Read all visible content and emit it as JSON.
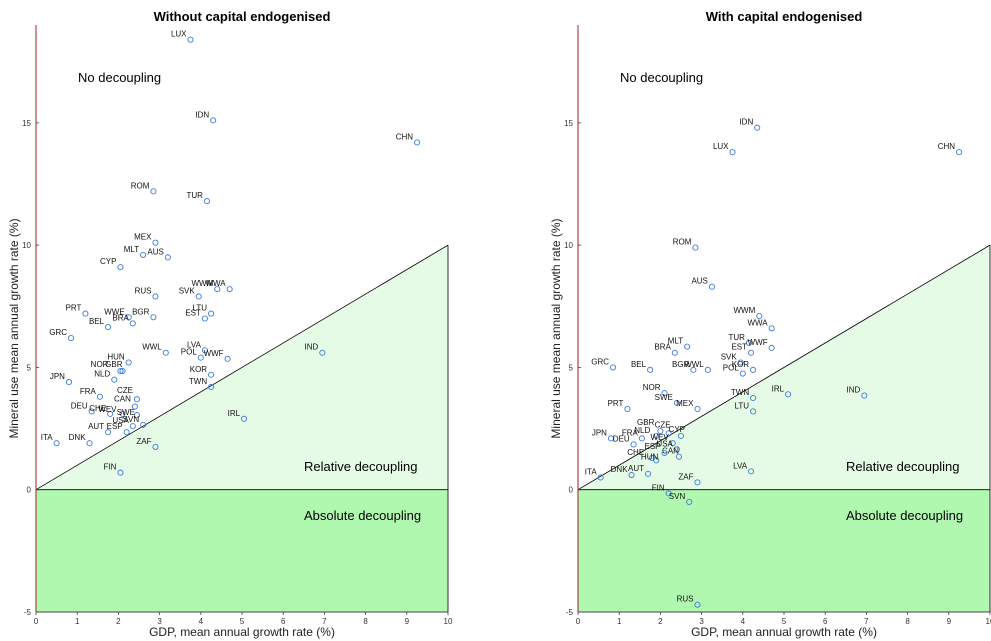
{
  "chart_data": [
    {
      "type": "scatter",
      "title": "Without capital endogenised",
      "xlabel": "GDP, mean annual growth rate (%)",
      "ylabel": "Mineral use mean annual growth rate (%)",
      "xlim": [
        0,
        10
      ],
      "ylim": [
        -5,
        19
      ],
      "xticks": [
        0,
        1,
        2,
        3,
        4,
        5,
        6,
        7,
        8,
        9,
        10
      ],
      "yticks": [
        -5,
        0,
        5,
        10,
        15
      ],
      "regions": {
        "no_decoupling": "No decoupling",
        "relative_decoupling": "Relative decoupling",
        "absolute_decoupling": "Absolute decoupling"
      },
      "colors": {
        "marker": "#3c7ddb",
        "relative_fill": "#e5fbe5",
        "absolute_fill": "#b0f7b0",
        "left_axis": "#a02020"
      },
      "points": [
        {
          "label": "LUX",
          "x": 3.75,
          "y": 18.4
        },
        {
          "label": "IDN",
          "x": 4.3,
          "y": 15.1
        },
        {
          "label": "CHN",
          "x": 9.25,
          "y": 14.2
        },
        {
          "label": "ROM",
          "x": 2.85,
          "y": 12.2
        },
        {
          "label": "TUR",
          "x": 4.15,
          "y": 11.8
        },
        {
          "label": "MEX",
          "x": 2.9,
          "y": 10.1
        },
        {
          "label": "MLT",
          "x": 2.6,
          "y": 9.6
        },
        {
          "label": "AUS",
          "x": 3.2,
          "y": 9.5
        },
        {
          "label": "CYP",
          "x": 2.05,
          "y": 9.1
        },
        {
          "label": "RUS",
          "x": 2.9,
          "y": 7.9
        },
        {
          "label": "SVK",
          "x": 3.95,
          "y": 7.9
        },
        {
          "label": "WWM",
          "x": 4.4,
          "y": 8.2
        },
        {
          "label": "WWA",
          "x": 4.7,
          "y": 8.2
        },
        {
          "label": "PRT",
          "x": 1.2,
          "y": 7.2
        },
        {
          "label": "WWE",
          "x": 2.25,
          "y": 7.05
        },
        {
          "label": "BGR",
          "x": 2.85,
          "y": 7.05
        },
        {
          "label": "BRA",
          "x": 2.35,
          "y": 6.8
        },
        {
          "label": "BEL",
          "x": 1.75,
          "y": 6.65
        },
        {
          "label": "LTU",
          "x": 4.25,
          "y": 7.2
        },
        {
          "label": "EST",
          "x": 4.1,
          "y": 7.0
        },
        {
          "label": "GRC",
          "x": 0.85,
          "y": 6.2
        },
        {
          "label": "WWL",
          "x": 3.15,
          "y": 5.6
        },
        {
          "label": "LVA",
          "x": 4.1,
          "y": 5.7
        },
        {
          "label": "POL",
          "x": 4.0,
          "y": 5.4
        },
        {
          "label": "WWF",
          "x": 4.65,
          "y": 5.35
        },
        {
          "label": "IND",
          "x": 6.95,
          "y": 5.6
        },
        {
          "label": "HUN",
          "x": 2.25,
          "y": 5.2
        },
        {
          "label": "NOR",
          "x": 2.05,
          "y": 4.85
        },
        {
          "label": "GBR",
          "x": 2.1,
          "y": 4.85
        },
        {
          "label": "NLD",
          "x": 1.9,
          "y": 4.5
        },
        {
          "label": "KOR",
          "x": 4.25,
          "y": 4.7
        },
        {
          "label": "TWN",
          "x": 4.25,
          "y": 4.2
        },
        {
          "label": "JPN",
          "x": 0.8,
          "y": 4.4
        },
        {
          "label": "FRA",
          "x": 1.55,
          "y": 3.8
        },
        {
          "label": "CZE",
          "x": 2.45,
          "y": 3.7
        },
        {
          "label": "CAN",
          "x": 2.4,
          "y": 3.4
        },
        {
          "label": "DEU",
          "x": 1.35,
          "y": 3.2
        },
        {
          "label": "CHE",
          "x": 1.8,
          "y": 3.1
        },
        {
          "label": "WEV",
          "x": 2.1,
          "y": 3.1
        },
        {
          "label": "SWE",
          "x": 2.45,
          "y": 3.05
        },
        {
          "label": "USA",
          "x": 2.35,
          "y": 2.6
        },
        {
          "label": "SVN",
          "x": 2.6,
          "y": 2.65
        },
        {
          "label": "AUT",
          "x": 1.75,
          "y": 2.35
        },
        {
          "label": "ESP",
          "x": 2.2,
          "y": 2.35
        },
        {
          "label": "IRL",
          "x": 5.05,
          "y": 2.9
        },
        {
          "label": "ITA",
          "x": 0.5,
          "y": 1.9
        },
        {
          "label": "DNK",
          "x": 1.3,
          "y": 1.9
        },
        {
          "label": "ZAF",
          "x": 2.9,
          "y": 1.75
        },
        {
          "label": "FIN",
          "x": 2.05,
          "y": 0.7
        }
      ]
    },
    {
      "type": "scatter",
      "title": "With capital endogenised",
      "xlabel": "GDP, mean annual growth rate (%)",
      "ylabel": "Mineral use mean annual growth rate (%)",
      "xlim": [
        0,
        10
      ],
      "ylim": [
        -5,
        19
      ],
      "xticks": [
        0,
        1,
        2,
        3,
        4,
        5,
        6,
        7,
        8,
        9,
        10
      ],
      "yticks": [
        -5,
        0,
        5,
        10,
        15
      ],
      "regions": {
        "no_decoupling": "No decoupling",
        "relative_decoupling": "Relative decoupling",
        "absolute_decoupling": "Absolute decoupling"
      },
      "colors": {
        "marker": "#3c7ddb",
        "relative_fill": "#e5fbe5",
        "absolute_fill": "#b0f7b0",
        "left_axis": "#a02020"
      },
      "points": [
        {
          "label": "IDN",
          "x": 4.35,
          "y": 14.8
        },
        {
          "label": "LUX",
          "x": 3.75,
          "y": 13.8
        },
        {
          "label": "CHN",
          "x": 9.25,
          "y": 13.8
        },
        {
          "label": "ROM",
          "x": 2.85,
          "y": 9.9
        },
        {
          "label": "AUS",
          "x": 3.25,
          "y": 8.3
        },
        {
          "label": "WWM",
          "x": 4.4,
          "y": 7.1
        },
        {
          "label": "WWA",
          "x": 4.7,
          "y": 6.6
        },
        {
          "label": "TUR",
          "x": 4.15,
          "y": 6.0
        },
        {
          "label": "WWF",
          "x": 4.7,
          "y": 5.8
        },
        {
          "label": "EST",
          "x": 4.2,
          "y": 5.6
        },
        {
          "label": "MLT",
          "x": 2.65,
          "y": 5.85
        },
        {
          "label": "BRA",
          "x": 2.35,
          "y": 5.6
        },
        {
          "label": "SVK",
          "x": 3.95,
          "y": 5.2
        },
        {
          "label": "KOR",
          "x": 4.25,
          "y": 4.9
        },
        {
          "label": "POL",
          "x": 4.0,
          "y": 4.75
        },
        {
          "label": "GRC",
          "x": 0.85,
          "y": 5.0
        },
        {
          "label": "BEL",
          "x": 1.75,
          "y": 4.9
        },
        {
          "label": "BGR",
          "x": 2.8,
          "y": 4.9
        },
        {
          "label": "WWL",
          "x": 3.15,
          "y": 4.9
        },
        {
          "label": "NOR",
          "x": 2.1,
          "y": 3.95
        },
        {
          "label": "IRL",
          "x": 5.1,
          "y": 3.9
        },
        {
          "label": "IND",
          "x": 6.95,
          "y": 3.85
        },
        {
          "label": "TWN",
          "x": 4.25,
          "y": 3.75
        },
        {
          "label": "SWE",
          "x": 2.4,
          "y": 3.55
        },
        {
          "label": "PRT",
          "x": 1.2,
          "y": 3.3
        },
        {
          "label": "MEX",
          "x": 2.9,
          "y": 3.3
        },
        {
          "label": "LTU",
          "x": 4.25,
          "y": 3.2
        },
        {
          "label": "GBR",
          "x": 2.0,
          "y": 2.4
        },
        {
          "label": "CZE",
          "x": 2.2,
          "y": 2.3
        },
        {
          "label": "FRA",
          "x": 1.55,
          "y": 2.1
        },
        {
          "label": "NLD",
          "x": 1.9,
          "y": 2.2
        },
        {
          "label": "CYP",
          "x": 2.5,
          "y": 2.2
        },
        {
          "label": "WEV",
          "x": 2.3,
          "y": 1.9
        },
        {
          "label": "JPN",
          "x": 0.8,
          "y": 2.1
        },
        {
          "label": "DEU",
          "x": 1.35,
          "y": 1.85
        },
        {
          "label": "USA",
          "x": 2.4,
          "y": 1.65
        },
        {
          "label": "CAN",
          "x": 2.45,
          "y": 1.35
        },
        {
          "label": "ESP",
          "x": 2.1,
          "y": 1.5
        },
        {
          "label": "CHE",
          "x": 1.8,
          "y": 1.3
        },
        {
          "label": "HUN",
          "x": 1.9,
          "y": 1.2
        },
        {
          "label": "ITA",
          "x": 0.55,
          "y": 0.5
        },
        {
          "label": "DNK",
          "x": 1.3,
          "y": 0.6
        },
        {
          "label": "AUT",
          "x": 1.7,
          "y": 0.65
        },
        {
          "label": "LVA",
          "x": 4.2,
          "y": 0.75
        },
        {
          "label": "ZAF",
          "x": 2.9,
          "y": 0.3
        },
        {
          "label": "FIN",
          "x": 2.2,
          "y": -0.15
        },
        {
          "label": "SVN",
          "x": 2.7,
          "y": -0.5
        },
        {
          "label": "RUS",
          "x": 2.9,
          "y": -4.7
        }
      ]
    }
  ]
}
